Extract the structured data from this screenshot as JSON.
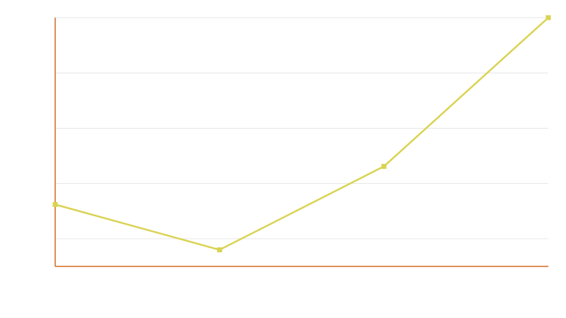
{
  "chart_data": {
    "type": "line",
    "title": "",
    "xlabel": "",
    "ylabel": "",
    "x": [
      0,
      1,
      2,
      3
    ],
    "ylim": [
      0,
      4.5
    ],
    "y_gridlines": [
      0.5,
      1.5,
      2.5,
      3.5,
      4.5
    ],
    "grid": true,
    "legend": "none",
    "series": [
      {
        "values": [
          1.12,
          0.3,
          1.81,
          4.5
        ],
        "color": "#d9d352",
        "marker": "square"
      }
    ],
    "axis_color": "#d4691e",
    "grid_color": "#e6e6e6"
  }
}
